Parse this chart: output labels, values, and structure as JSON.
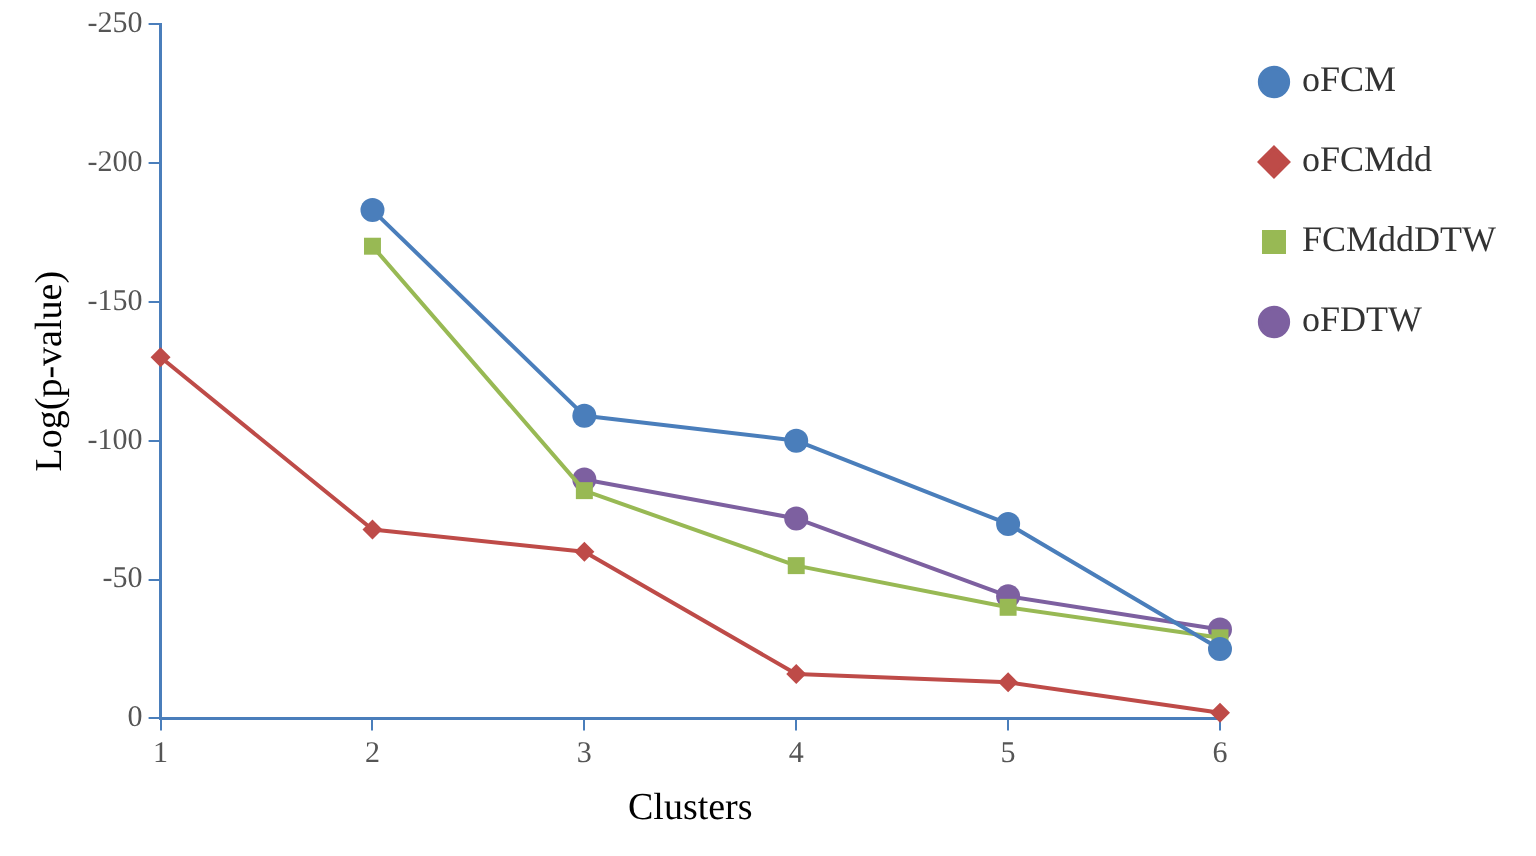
{
  "chart_data": {
    "type": "line",
    "xlabel": "Clusters",
    "ylabel": "Log(p-value)",
    "x": [
      1,
      2,
      3,
      4,
      5,
      6
    ],
    "xlim": [
      1,
      6
    ],
    "xticks": [
      1,
      2,
      3,
      4,
      5,
      6
    ],
    "ylim": [
      0,
      -250
    ],
    "yticks": [
      0,
      -50,
      -100,
      -150,
      -200,
      -250
    ],
    "grid": false,
    "legend": "top right",
    "line_style": "solid",
    "series": [
      {
        "name": "oFCM",
        "color": "#4a7ebb",
        "marker": "circle",
        "values": [
          null,
          -183,
          -109,
          -100,
          -70,
          -25
        ]
      },
      {
        "name": "oFCMdd",
        "color": "#be4b48",
        "marker": "diamond",
        "values": [
          -130,
          -68,
          -60,
          -16,
          -13,
          -2
        ]
      },
      {
        "name": "FCMddDTW",
        "color": "#98b954",
        "marker": "square",
        "values": [
          null,
          -170,
          -82,
          -55,
          -40,
          -29
        ]
      },
      {
        "name": "oFDTW",
        "color": "#7d60a0",
        "marker": "circle",
        "values": [
          null,
          null,
          -86,
          -72,
          -44,
          -32
        ]
      }
    ]
  }
}
